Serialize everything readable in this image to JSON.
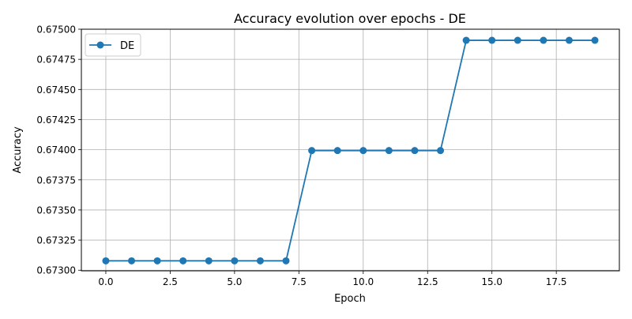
{
  "chart_data": {
    "type": "line",
    "title": "Accuracy evolution over epochs - DE",
    "xlabel": "Epoch",
    "ylabel": "Accuracy",
    "xlim": [
      -0.95,
      19.95
    ],
    "ylim": [
      0.672995,
      0.675
    ],
    "x_ticks": [
      0.0,
      2.5,
      5.0,
      7.5,
      10.0,
      12.5,
      15.0,
      17.5
    ],
    "x_tick_labels": [
      "0.0",
      "2.5",
      "5.0",
      "7.5",
      "10.0",
      "12.5",
      "15.0",
      "17.5"
    ],
    "y_ticks": [
      0.673,
      0.67325,
      0.6735,
      0.67375,
      0.674,
      0.67425,
      0.6745,
      0.67475,
      0.675
    ],
    "y_tick_labels": [
      "0.67300",
      "0.67325",
      "0.67350",
      "0.67375",
      "0.67400",
      "0.67425",
      "0.67450",
      "0.67475",
      "0.67500"
    ],
    "grid": true,
    "legend_position": "top-left",
    "x": [
      0,
      1,
      2,
      3,
      4,
      5,
      6,
      7,
      8,
      9,
      10,
      11,
      12,
      13,
      14,
      15,
      16,
      17,
      18,
      19
    ],
    "series": [
      {
        "name": "DE",
        "color": "#1f77b4",
        "marker": "circle",
        "values": [
          0.673078,
          0.673078,
          0.673078,
          0.673078,
          0.673078,
          0.673078,
          0.673078,
          0.673078,
          0.673993,
          0.673993,
          0.673993,
          0.673993,
          0.673993,
          0.673993,
          0.674908,
          0.674908,
          0.674908,
          0.674908,
          0.674908,
          0.674908
        ]
      }
    ]
  }
}
